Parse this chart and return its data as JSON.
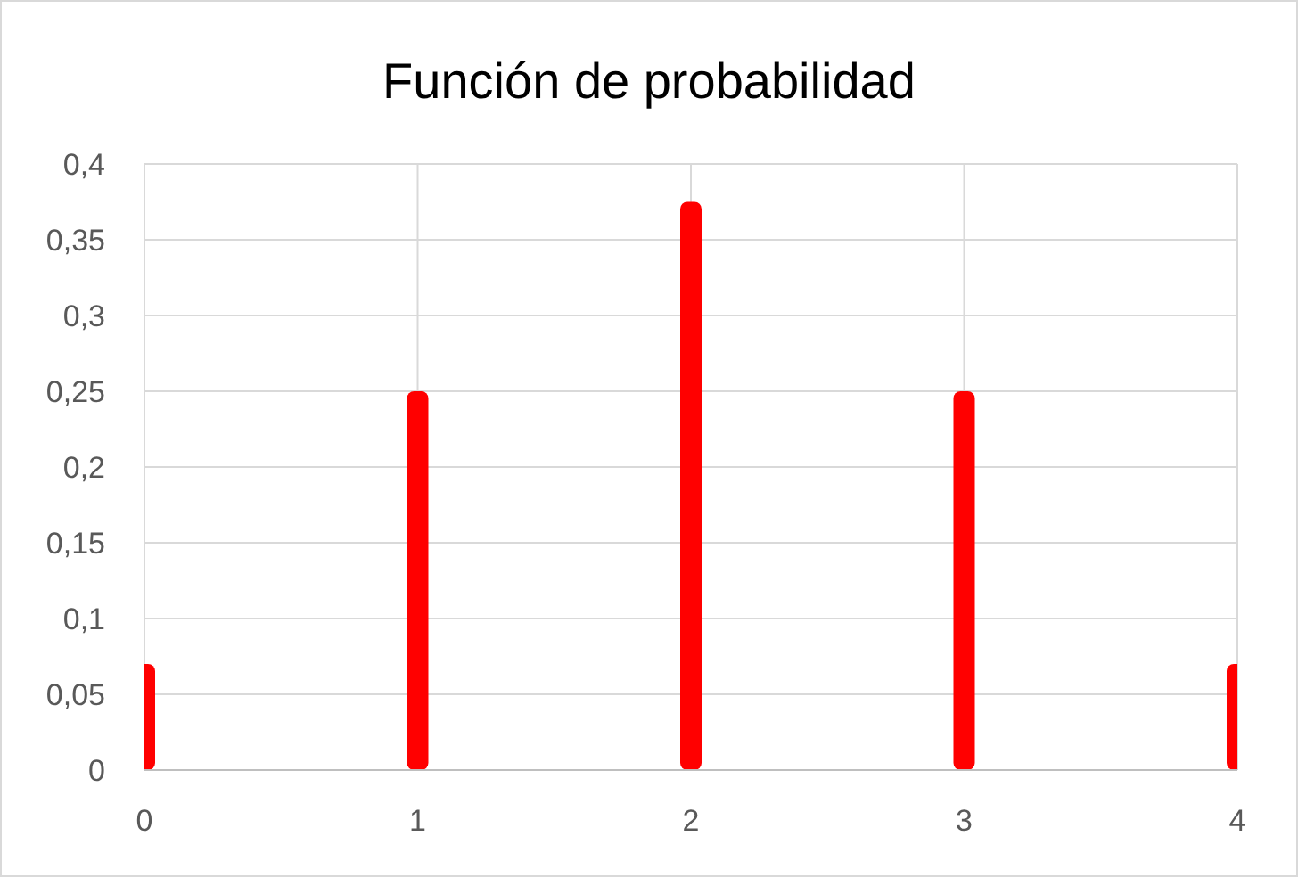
{
  "chart_data": {
    "type": "bar",
    "title": "Función de probabilidad",
    "x": [
      0,
      1,
      2,
      3,
      4
    ],
    "values": [
      0.07,
      0.25,
      0.375,
      0.25,
      0.07
    ],
    "color": "#ff0000",
    "xlim": [
      0,
      4
    ],
    "xticks": [
      0,
      1,
      2,
      3,
      4
    ],
    "ylim": [
      0,
      0.4
    ],
    "yticks": [
      {
        "value": 0,
        "label": "0"
      },
      {
        "value": 0.05,
        "label": "0,05"
      },
      {
        "value": 0.1,
        "label": "0,1"
      },
      {
        "value": 0.15,
        "label": "0,15"
      },
      {
        "value": 0.2,
        "label": "0,2"
      },
      {
        "value": 0.25,
        "label": "0,25"
      },
      {
        "value": 0.3,
        "label": "0,3"
      },
      {
        "value": 0.35,
        "label": "0,35"
      },
      {
        "value": 0.4,
        "label": "0,4"
      }
    ],
    "grid": true
  }
}
